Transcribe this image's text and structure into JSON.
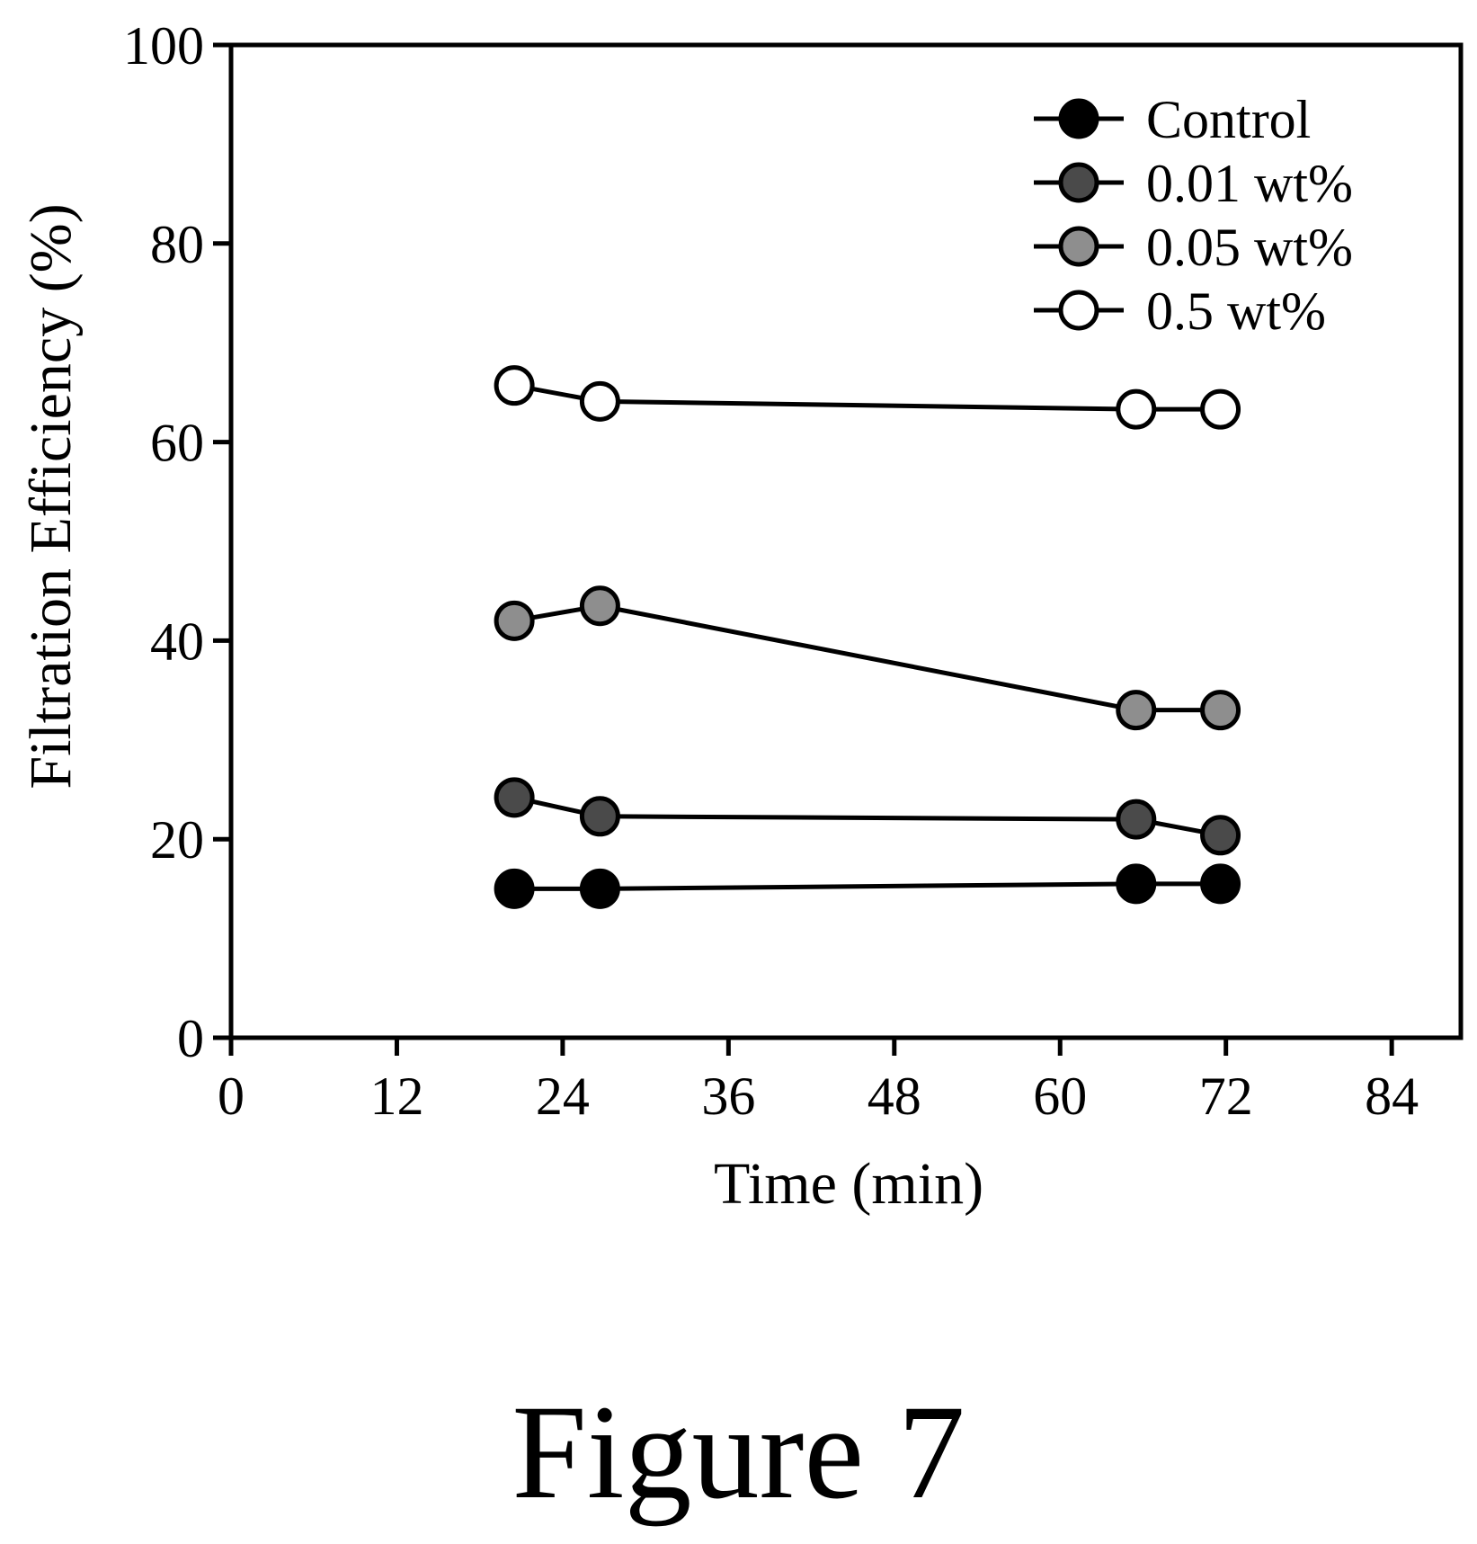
{
  "figure_caption": "Figure 7",
  "colors": {
    "axis": "#000000",
    "line": "#000000",
    "background": "#ffffff",
    "marker_control": "#000000",
    "marker_001": "#4a4a4a",
    "marker_005": "#8e8e8e",
    "marker_05": "#ffffff"
  },
  "chart_data": {
    "type": "line",
    "title": "",
    "xlabel": "Time (min)",
    "ylabel": "Filtration Efficiency (%)",
    "xlim": [
      0,
      89
    ],
    "ylim": [
      0,
      100
    ],
    "xticks": [
      0,
      12,
      24,
      36,
      48,
      60,
      72,
      84
    ],
    "yticks": [
      0,
      20,
      40,
      60,
      80,
      100
    ],
    "grid": false,
    "legend_position": "top-right",
    "series": [
      {
        "name": "Control",
        "marker": "filled-black",
        "x": [
          20.5,
          26.7,
          65.5,
          71.6
        ],
        "y": [
          15.0,
          15.0,
          15.5,
          15.5
        ]
      },
      {
        "name": "0.01 wt%",
        "marker": "filled-dark-gray",
        "x": [
          20.5,
          26.7,
          65.5,
          71.6
        ],
        "y": [
          24.2,
          22.3,
          22.0,
          20.4
        ]
      },
      {
        "name": "0.05 wt%",
        "marker": "filled-light-gray",
        "x": [
          20.5,
          26.7,
          65.5,
          71.6
        ],
        "y": [
          42.0,
          43.5,
          33.0,
          33.0
        ]
      },
      {
        "name": "0.5 wt%",
        "marker": "open-white",
        "x": [
          20.5,
          26.7,
          65.5,
          71.6
        ],
        "y": [
          65.7,
          64.1,
          63.3,
          63.3
        ]
      }
    ]
  }
}
